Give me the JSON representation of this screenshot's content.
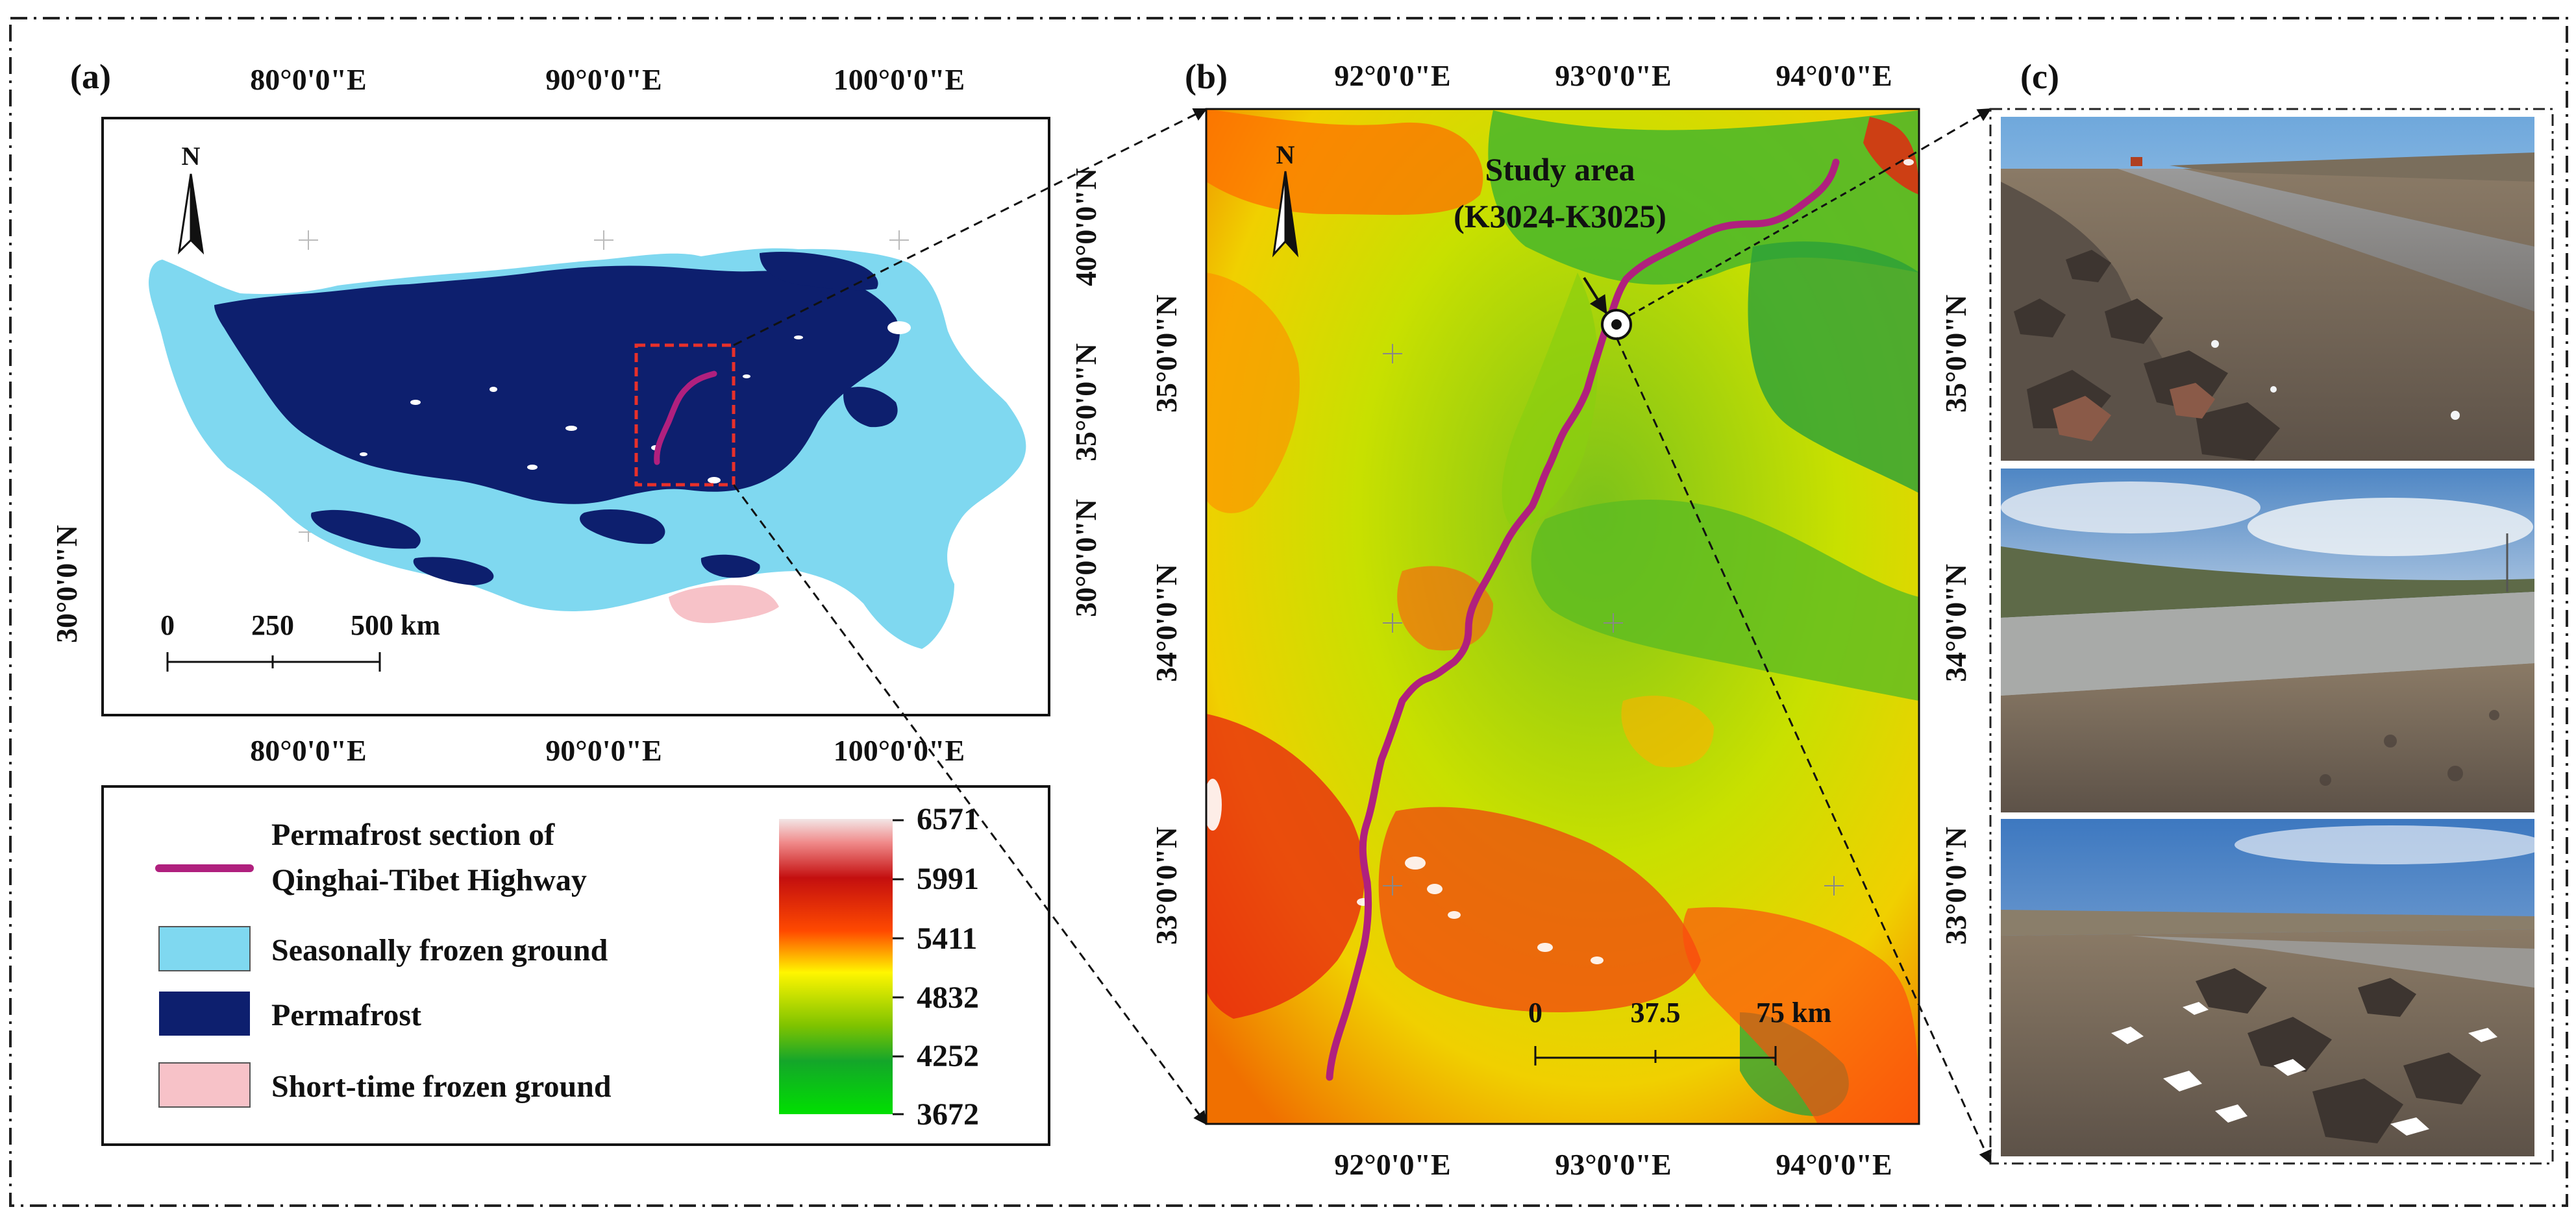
{
  "panels": {
    "a": {
      "label": "(a)"
    },
    "b": {
      "label": "(b)"
    },
    "c": {
      "label": "(c)"
    }
  },
  "map_a": {
    "lon_labels": [
      "80°0'0\"E",
      "90°0'0\"E",
      "100°0'0\"E"
    ],
    "lat_labels": [
      "40°0'0\"N",
      "35°0'0\"N",
      "30°0'0\"N"
    ],
    "north": "N",
    "scalebar": {
      "v0": "0",
      "v1": "250",
      "v2": "500 km"
    }
  },
  "map_b": {
    "lon_labels": [
      "92°0'0\"E",
      "93°0'0\"E",
      "94°0'0\"E"
    ],
    "lat_labels": [
      "35°0'0\"N",
      "34°0'0\"N",
      "33°0'0\"N"
    ],
    "north": "N",
    "study_area": {
      "line1": "Study area",
      "line2": "(K3024-K3025)"
    },
    "scalebar": {
      "v0": "0",
      "v1": "37.5",
      "v2": "75 km"
    }
  },
  "legend": {
    "items": [
      {
        "text1": "Permafrost section of",
        "text2": "Qinghai-Tibet Highway",
        "color": "#b0207e",
        "kind": "line"
      },
      {
        "text1": "Seasonally frozen ground",
        "color": "#7fd8f0",
        "kind": "patch"
      },
      {
        "text1": "Permafrost",
        "color": "#0d1f6e",
        "kind": "patch"
      },
      {
        "text1": "Short-time frozen ground",
        "color": "#f7c2c8",
        "kind": "patch"
      }
    ],
    "elevation": [
      "6571",
      "5991",
      "5411",
      "4832",
      "4252",
      "3672"
    ]
  },
  "colors": {
    "permafrost": "#0d1f6e",
    "seasonal": "#7fd8f0",
    "shorttime": "#f7c2c8",
    "highway": "#b0207e",
    "box": "#e8302a"
  }
}
